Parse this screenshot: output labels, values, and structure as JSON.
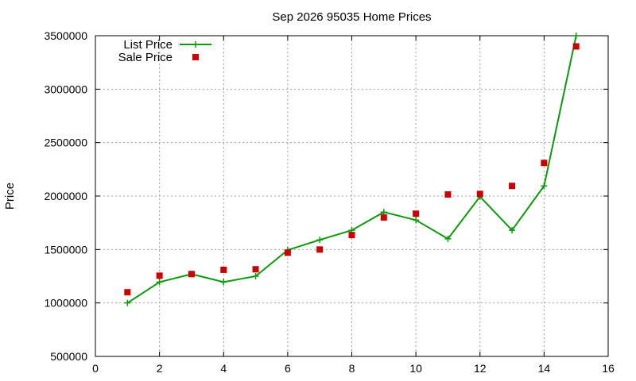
{
  "chart_data": {
    "type": "line",
    "title": "Sep 2026 95035 Home Prices",
    "xlabel": "",
    "ylabel": "Price",
    "xlim": [
      0,
      16
    ],
    "ylim": [
      500000,
      3500000
    ],
    "xticks": [
      0,
      2,
      4,
      6,
      8,
      10,
      12,
      14,
      16
    ],
    "yticks": [
      500000,
      1000000,
      1500000,
      2000000,
      2500000,
      3000000,
      3500000
    ],
    "grid": true,
    "legend_position": "top-left",
    "series": [
      {
        "name": "List Price",
        "style": "line-with-plus-markers",
        "color": "#0a9a0a",
        "x": [
          1,
          2,
          3,
          4,
          5,
          6,
          7,
          8,
          9,
          10,
          11,
          12,
          13,
          14,
          15
        ],
        "y": [
          1000000,
          1195000,
          1270000,
          1195000,
          1250000,
          1495000,
          1590000,
          1680000,
          1850000,
          1775000,
          1600000,
          1995000,
          1680000,
          2095000,
          3500000
        ]
      },
      {
        "name": "Sale Price",
        "style": "square-markers",
        "color": "#cc0000",
        "x": [
          1,
          2,
          3,
          4,
          5,
          6,
          7,
          8,
          9,
          10,
          11,
          12,
          13,
          14,
          15
        ],
        "y": [
          1100000,
          1255000,
          1270000,
          1310000,
          1315000,
          1470000,
          1500000,
          1635000,
          1800000,
          1835000,
          2015000,
          2020000,
          2095000,
          2310000,
          3400000
        ]
      }
    ]
  }
}
